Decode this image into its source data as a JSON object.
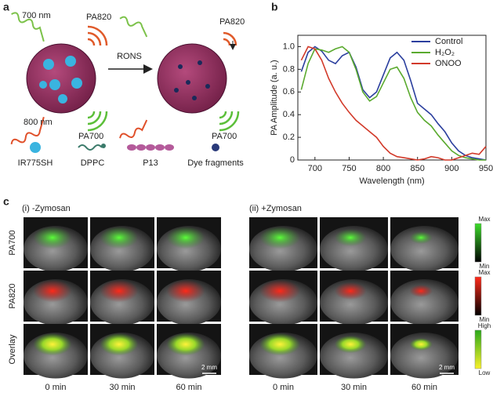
{
  "panel_a": {
    "label": "a",
    "light_700": "700 nm",
    "pa820_before": "PA820",
    "arrow": "RONS",
    "pa820_after": "PA820",
    "light_800": "800 nm",
    "pa700_before": "PA700",
    "pa700_after": "PA700",
    "legend": [
      "IR775SH",
      "DPPC",
      "P13",
      "Dye fragments"
    ]
  },
  "chart_data": {
    "type": "line",
    "panel_label": "b",
    "x_label": "Wavelength (nm)",
    "y_label": "PA Amplitude (a. u.)",
    "x": [
      680,
      690,
      700,
      710,
      720,
      730,
      740,
      750,
      760,
      770,
      780,
      790,
      800,
      810,
      820,
      830,
      840,
      850,
      860,
      870,
      880,
      890,
      900,
      910,
      920,
      930,
      940,
      950
    ],
    "series": [
      {
        "name": "Control",
        "color": "#2b3f9e",
        "values": [
          0.78,
          0.95,
          1.0,
          0.96,
          0.88,
          0.85,
          0.92,
          0.95,
          0.82,
          0.62,
          0.55,
          0.6,
          0.75,
          0.9,
          0.95,
          0.88,
          0.7,
          0.5,
          0.45,
          0.4,
          0.32,
          0.25,
          0.15,
          0.08,
          0.04,
          0.02,
          0.01,
          0.0
        ]
      },
      {
        "name": "H₂O₂",
        "color": "#5aaa2e",
        "values": [
          0.62,
          0.85,
          0.98,
          0.97,
          0.95,
          0.98,
          1.0,
          0.95,
          0.8,
          0.6,
          0.52,
          0.56,
          0.68,
          0.8,
          0.82,
          0.72,
          0.55,
          0.42,
          0.35,
          0.3,
          0.22,
          0.15,
          0.08,
          0.04,
          0.02,
          0.01,
          0.0,
          0.0
        ]
      },
      {
        "name": "ONOO",
        "color": "#d23a2a",
        "values": [
          0.88,
          1.0,
          0.98,
          0.88,
          0.72,
          0.6,
          0.5,
          0.42,
          0.35,
          0.3,
          0.25,
          0.2,
          0.12,
          0.06,
          0.03,
          0.02,
          0.01,
          0.0,
          0.01,
          0.03,
          0.02,
          0.0,
          0.0,
          0.02,
          0.04,
          0.06,
          0.05,
          0.12
        ]
      }
    ],
    "xlim": [
      675,
      950
    ],
    "ylim": [
      0,
      1.1
    ],
    "xticks": [
      700,
      750,
      800,
      850,
      900,
      950
    ],
    "yticks": [
      0,
      0.2,
      0.4,
      0.6,
      0.8,
      {
        "value": 1,
        "label": "1.0"
      }
    ],
    "legend_position": "upper right"
  },
  "panel_c": {
    "label": "c",
    "groups": [
      "(i) -Zymosan",
      "(ii) +Zymosan"
    ],
    "rows": [
      "PA700",
      "PA820",
      "Overlay"
    ],
    "times": [
      "0 min",
      "30 min",
      "60 min"
    ],
    "scale_bar": "2 mm",
    "colorbars": [
      [
        "Max",
        "Min"
      ],
      [
        "Max",
        "Min"
      ],
      [
        "High",
        "Low"
      ]
    ]
  }
}
